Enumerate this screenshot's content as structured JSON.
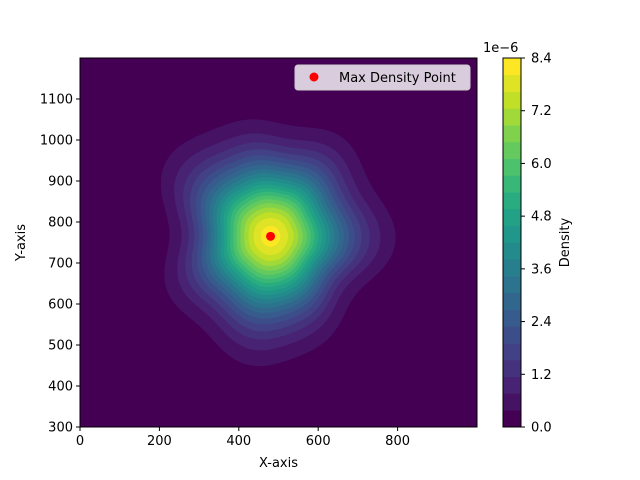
{
  "chart_data": {
    "type": "heatmap",
    "subtype": "filled-contour-density",
    "xlabel": "X-axis",
    "ylabel": "Y-axis",
    "xlim": [
      0,
      1000
    ],
    "ylim": [
      300,
      1200
    ],
    "x_ticks": [
      0,
      200,
      400,
      600,
      800
    ],
    "y_ticks": [
      300,
      400,
      500,
      600,
      700,
      800,
      900,
      1000,
      1100
    ],
    "colormap": "viridis",
    "grid": false,
    "density": {
      "peak_x": 480,
      "peak_y": 765,
      "peak_value": 8.2e-06,
      "spread_x": 115,
      "spread_y": 120
    },
    "max_point": {
      "x": 480,
      "y": 765,
      "label": "Max Density Point",
      "color": "#ff0000"
    },
    "legend": {
      "position": "top-right",
      "entries": [
        "Max Density Point"
      ]
    },
    "colorbar": {
      "label": "Density",
      "offset_text": "1e−6",
      "min": 0.0,
      "max": 8.4,
      "levels": 22,
      "ticks": [
        "0.0",
        "1.2",
        "2.4",
        "3.6",
        "4.8",
        "6.0",
        "7.2",
        "8.4"
      ]
    }
  }
}
